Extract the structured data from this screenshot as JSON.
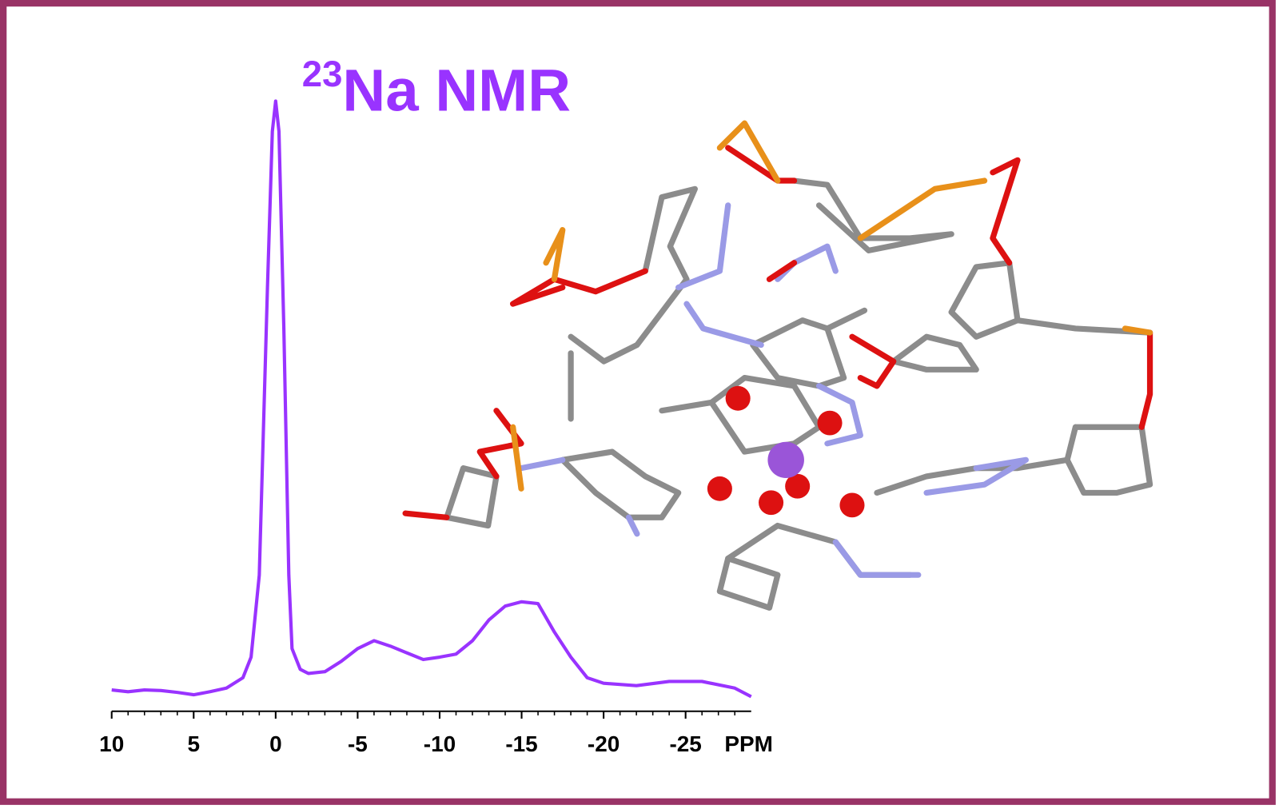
{
  "chart_data": {
    "type": "line",
    "title_superscript": "23",
    "title": "Na NMR",
    "xlabel": "PPM",
    "color": "#9933ff",
    "xlim": [
      10,
      -29
    ],
    "ylim": [
      0,
      100
    ],
    "xticks": [
      10,
      5,
      0,
      -5,
      -10,
      -15,
      -20,
      -25
    ],
    "xminorticks": [
      9,
      8,
      7,
      6,
      4,
      3,
      2,
      1,
      -1,
      -2,
      -3,
      -4,
      -6,
      -7,
      -8,
      -9,
      -11,
      -12,
      -13,
      -14,
      -16,
      -17,
      -18,
      -19,
      -21,
      -22,
      -23,
      -24,
      -26,
      -27,
      -28
    ],
    "x": [
      10,
      9,
      8,
      7,
      6,
      5,
      4,
      3,
      2,
      1.5,
      1,
      0.5,
      0.2,
      0,
      -0.2,
      -0.5,
      -0.8,
      -1,
      -1.5,
      -2,
      -3,
      -4,
      -5,
      -6,
      -7,
      -8,
      -9,
      -10,
      -11,
      -12,
      -13,
      -14,
      -15,
      -16,
      -17,
      -18,
      -19,
      -20,
      -22,
      -24,
      -26,
      -28,
      -29
    ],
    "values": [
      2.7,
      2.4,
      2.7,
      2.6,
      2.3,
      1.9,
      2.4,
      3.0,
      4.7,
      8.1,
      21.6,
      68.9,
      94.6,
      99.6,
      94.6,
      62.2,
      21.6,
      9.5,
      6.1,
      5.4,
      5.7,
      7.4,
      9.5,
      10.8,
      9.9,
      8.8,
      7.7,
      8.1,
      8.6,
      10.8,
      14.2,
      16.5,
      17.2,
      16.9,
      12.2,
      8.1,
      4.7,
      3.8,
      3.4,
      4.1,
      4.1,
      3.0,
      1.6
    ]
  }
}
